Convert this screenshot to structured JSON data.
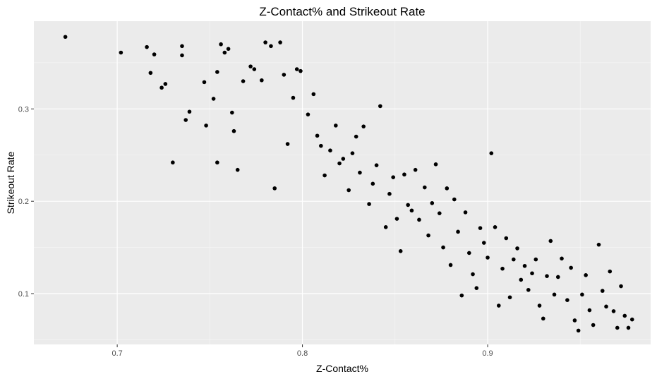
{
  "chart_data": {
    "type": "scatter",
    "title": "Z-Contact% and Strikeout Rate",
    "xlabel": "Z-Contact%",
    "ylabel": "Strikeout Rate",
    "xlim": [
      0.655,
      0.988
    ],
    "ylim": [
      0.045,
      0.395
    ],
    "x_ticks": [
      0.7,
      0.8,
      0.9
    ],
    "x_tick_labels": [
      "0.7",
      "0.8",
      "0.9"
    ],
    "x_minor_ticks": [
      0.75,
      0.85,
      0.95
    ],
    "y_ticks": [
      0.1,
      0.2,
      0.3
    ],
    "y_tick_labels": [
      "0.1",
      "0.2",
      "0.3"
    ],
    "y_minor_ticks": [
      0.05,
      0.15,
      0.25,
      0.35
    ],
    "grid": true,
    "background": "#ebebeb",
    "point_color": "#000000",
    "points": [
      [
        0.672,
        0.378
      ],
      [
        0.702,
        0.361
      ],
      [
        0.716,
        0.367
      ],
      [
        0.72,
        0.359
      ],
      [
        0.718,
        0.339
      ],
      [
        0.724,
        0.323
      ],
      [
        0.726,
        0.327
      ],
      [
        0.73,
        0.242
      ],
      [
        0.735,
        0.368
      ],
      [
        0.735,
        0.358
      ],
      [
        0.737,
        0.288
      ],
      [
        0.739,
        0.297
      ],
      [
        0.747,
        0.329
      ],
      [
        0.748,
        0.282
      ],
      [
        0.752,
        0.311
      ],
      [
        0.754,
        0.34
      ],
      [
        0.754,
        0.242
      ],
      [
        0.756,
        0.37
      ],
      [
        0.758,
        0.361
      ],
      [
        0.76,
        0.365
      ],
      [
        0.762,
        0.296
      ],
      [
        0.763,
        0.276
      ],
      [
        0.765,
        0.234
      ],
      [
        0.768,
        0.33
      ],
      [
        0.772,
        0.346
      ],
      [
        0.774,
        0.343
      ],
      [
        0.778,
        0.331
      ],
      [
        0.78,
        0.372
      ],
      [
        0.783,
        0.368
      ],
      [
        0.788,
        0.372
      ],
      [
        0.785,
        0.214
      ],
      [
        0.79,
        0.337
      ],
      [
        0.792,
        0.262
      ],
      [
        0.795,
        0.312
      ],
      [
        0.797,
        0.343
      ],
      [
        0.799,
        0.341
      ],
      [
        0.803,
        0.294
      ],
      [
        0.806,
        0.316
      ],
      [
        0.808,
        0.271
      ],
      [
        0.81,
        0.26
      ],
      [
        0.812,
        0.228
      ],
      [
        0.815,
        0.255
      ],
      [
        0.818,
        0.282
      ],
      [
        0.82,
        0.241
      ],
      [
        0.822,
        0.246
      ],
      [
        0.825,
        0.212
      ],
      [
        0.827,
        0.252
      ],
      [
        0.829,
        0.27
      ],
      [
        0.831,
        0.231
      ],
      [
        0.833,
        0.281
      ],
      [
        0.836,
        0.197
      ],
      [
        0.838,
        0.219
      ],
      [
        0.84,
        0.239
      ],
      [
        0.842,
        0.303
      ],
      [
        0.845,
        0.172
      ],
      [
        0.847,
        0.208
      ],
      [
        0.849,
        0.226
      ],
      [
        0.851,
        0.181
      ],
      [
        0.853,
        0.146
      ],
      [
        0.855,
        0.229
      ],
      [
        0.857,
        0.196
      ],
      [
        0.859,
        0.19
      ],
      [
        0.861,
        0.234
      ],
      [
        0.863,
        0.18
      ],
      [
        0.866,
        0.215
      ],
      [
        0.868,
        0.163
      ],
      [
        0.87,
        0.198
      ],
      [
        0.872,
        0.24
      ],
      [
        0.874,
        0.187
      ],
      [
        0.876,
        0.15
      ],
      [
        0.878,
        0.214
      ],
      [
        0.88,
        0.131
      ],
      [
        0.882,
        0.202
      ],
      [
        0.884,
        0.167
      ],
      [
        0.886,
        0.098
      ],
      [
        0.888,
        0.188
      ],
      [
        0.89,
        0.144
      ],
      [
        0.892,
        0.121
      ],
      [
        0.894,
        0.106
      ],
      [
        0.896,
        0.171
      ],
      [
        0.898,
        0.155
      ],
      [
        0.9,
        0.139
      ],
      [
        0.902,
        0.252
      ],
      [
        0.904,
        0.172
      ],
      [
        0.906,
        0.087
      ],
      [
        0.908,
        0.127
      ],
      [
        0.91,
        0.16
      ],
      [
        0.912,
        0.096
      ],
      [
        0.914,
        0.137
      ],
      [
        0.916,
        0.149
      ],
      [
        0.918,
        0.115
      ],
      [
        0.92,
        0.13
      ],
      [
        0.922,
        0.104
      ],
      [
        0.924,
        0.122
      ],
      [
        0.926,
        0.137
      ],
      [
        0.928,
        0.087
      ],
      [
        0.93,
        0.073
      ],
      [
        0.932,
        0.119
      ],
      [
        0.934,
        0.157
      ],
      [
        0.936,
        0.099
      ],
      [
        0.938,
        0.118
      ],
      [
        0.94,
        0.138
      ],
      [
        0.943,
        0.093
      ],
      [
        0.945,
        0.128
      ],
      [
        0.947,
        0.071
      ],
      [
        0.949,
        0.06
      ],
      [
        0.951,
        0.099
      ],
      [
        0.953,
        0.12
      ],
      [
        0.955,
        0.082
      ],
      [
        0.957,
        0.066
      ],
      [
        0.96,
        0.153
      ],
      [
        0.962,
        0.103
      ],
      [
        0.964,
        0.086
      ],
      [
        0.966,
        0.124
      ],
      [
        0.968,
        0.081
      ],
      [
        0.97,
        0.063
      ],
      [
        0.972,
        0.108
      ],
      [
        0.974,
        0.076
      ],
      [
        0.976,
        0.063
      ],
      [
        0.978,
        0.072
      ]
    ]
  }
}
